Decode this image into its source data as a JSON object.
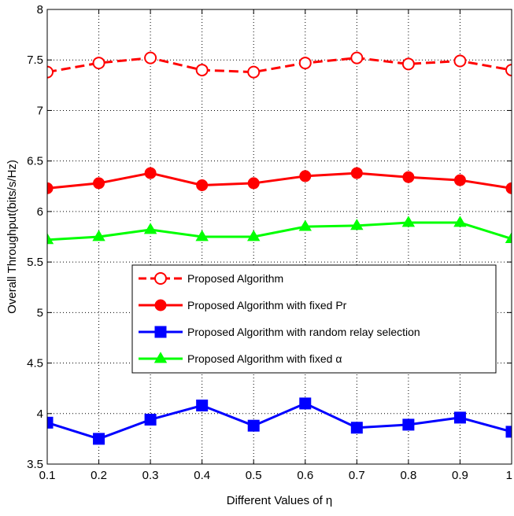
{
  "chart_data": {
    "type": "line",
    "xlabel": "Different Values of η",
    "ylabel": "Overall Throughput(bits/s/Hz)",
    "xlim": [
      0.1,
      1
    ],
    "ylim": [
      3.5,
      8
    ],
    "x_ticks": [
      0.1,
      0.2,
      0.3,
      0.4,
      0.5,
      0.6,
      0.7,
      0.8,
      0.9,
      1
    ],
    "x_tick_labels": [
      "0.1",
      "0.2",
      "0.3",
      "0.4",
      "0.5",
      "0.6",
      "0.7",
      "0.8",
      "0.9",
      "1"
    ],
    "y_ticks": [
      3.5,
      4,
      4.5,
      5,
      5.5,
      6,
      6.5,
      7,
      7.5,
      8
    ],
    "y_tick_labels": [
      "3.5",
      "4",
      "4.5",
      "5",
      "5.5",
      "6",
      "6.5",
      "7",
      "7.5",
      "8"
    ],
    "grid": true,
    "legend_position": "center",
    "x": [
      0.1,
      0.2,
      0.3,
      0.4,
      0.5,
      0.6,
      0.7,
      0.8,
      0.9,
      1
    ],
    "series": [
      {
        "name": "Proposed Algorithm",
        "color": "#ff0000",
        "line": "dashed",
        "marker": "open-circle",
        "values": [
          7.38,
          7.47,
          7.52,
          7.4,
          7.38,
          7.47,
          7.52,
          7.46,
          7.49,
          7.4
        ]
      },
      {
        "name": "Proposed Algorithm with fixed Pr",
        "color": "#ff0000",
        "line": "solid",
        "marker": "filled-circle",
        "values": [
          6.23,
          6.28,
          6.38,
          6.26,
          6.28,
          6.35,
          6.38,
          6.34,
          6.31,
          6.23
        ]
      },
      {
        "name": "Proposed Algorithm with random relay selection",
        "color": "#0000ff",
        "line": "solid",
        "marker": "filled-square",
        "values": [
          3.91,
          3.75,
          3.94,
          4.08,
          3.88,
          4.1,
          3.86,
          3.89,
          3.96,
          3.82
        ]
      },
      {
        "name": "Proposed Algorithm with fixed α",
        "color": "#00ff00",
        "line": "solid",
        "marker": "filled-triangle",
        "values": [
          5.72,
          5.75,
          5.82,
          5.75,
          5.75,
          5.85,
          5.86,
          5.89,
          5.89,
          5.73
        ]
      }
    ]
  }
}
